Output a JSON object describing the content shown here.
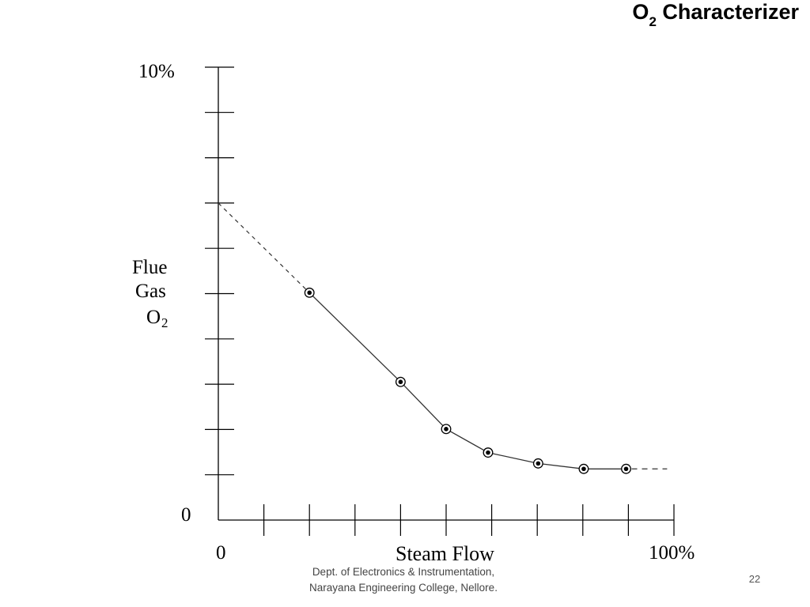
{
  "slide": {
    "title_main": "O",
    "title_sub": "2",
    "title_rest": " Characterizer",
    "footer_line1": "Dept. of Electronics & Instrumentation,",
    "footer_line2": "Narayana Engineering College, Nellore.",
    "page_number": "22"
  },
  "chart_data": {
    "type": "line",
    "title": "O2 Characterizer",
    "xlabel": "Steam Flow",
    "ylabel_lines": [
      "Flue",
      "Gas",
      "O"
    ],
    "ylabel_subscript": "2",
    "x_tick_labels": {
      "start": "0",
      "end": "100%"
    },
    "y_tick_labels": {
      "start": "0",
      "end": "10%"
    },
    "xlim": [
      0,
      100
    ],
    "ylim": [
      0,
      10
    ],
    "x_ticks": [
      0,
      10,
      20,
      30,
      40,
      50,
      60,
      70,
      80,
      90,
      100
    ],
    "y_ticks": [
      0,
      1,
      2,
      3,
      4,
      5,
      6,
      7,
      8,
      9,
      10
    ],
    "grid": false,
    "series": [
      {
        "x": [
          20,
          40,
          50,
          59.2,
          70.2,
          80.2,
          89.5
        ],
        "y": [
          5.02,
          3.05,
          2.01,
          1.49,
          1.25,
          1.13,
          1.13
        ],
        "marker": "circle-dot"
      }
    ],
    "extrapolation_start": {
      "x": [
        0,
        20
      ],
      "y": [
        7.0,
        5.02
      ],
      "style": "dashed"
    },
    "extrapolation_end": {
      "x": [
        89.5,
        98.5
      ],
      "y": [
        1.13,
        1.13
      ],
      "style": "dashed"
    },
    "colors": {
      "line": "#333333",
      "axis": "#000000"
    }
  }
}
